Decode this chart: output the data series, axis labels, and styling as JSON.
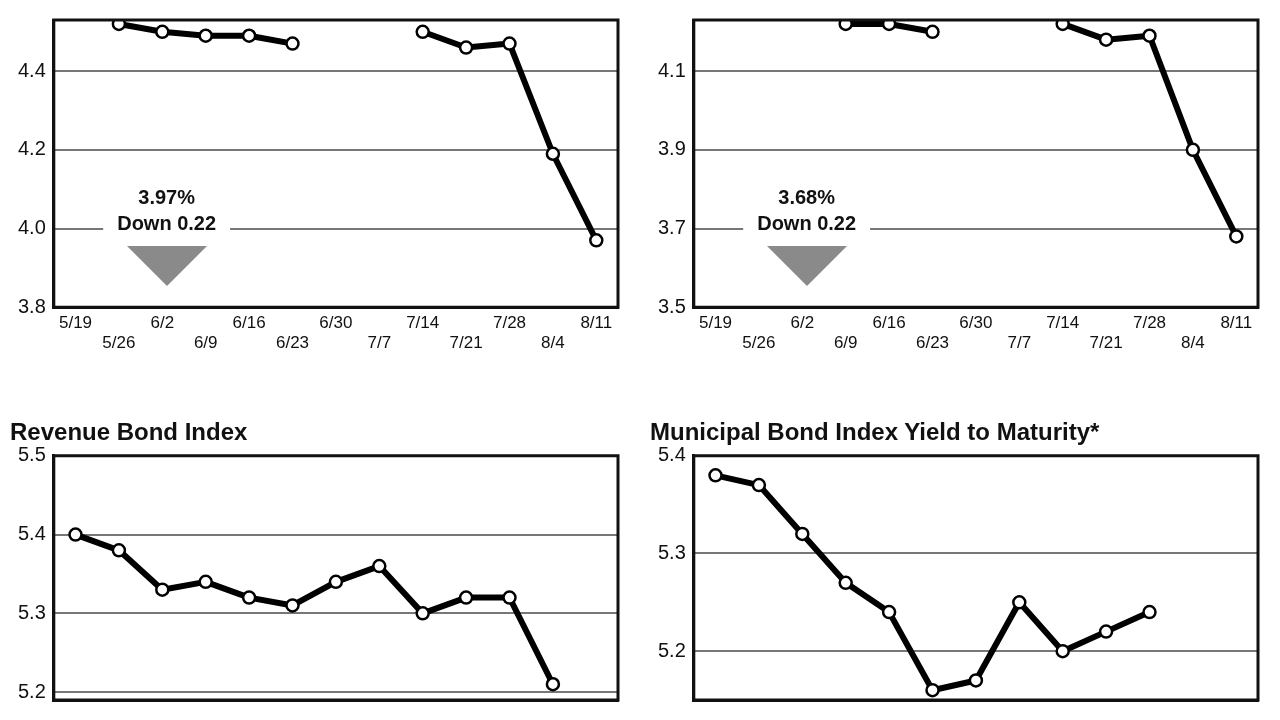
{
  "chart_data": [
    {
      "type": "line",
      "categories": [
        "5/19",
        "5/26",
        "6/2",
        "6/9",
        "6/16",
        "6/23",
        "6/30",
        "7/7",
        "7/14",
        "7/21",
        "7/28",
        "8/4",
        "8/11"
      ],
      "series": [
        {
          "color": "#000000",
          "values": [
            null,
            4.52,
            4.5,
            4.49,
            4.49,
            4.47,
            null,
            null,
            4.5,
            4.46,
            4.47,
            4.19,
            3.97
          ]
        }
      ],
      "ylim": [
        3.8,
        4.53
      ],
      "yticks": [
        3.8,
        {
          "value": 4.0,
          "label": "4.0"
        },
        4.2,
        4.4
      ],
      "grid": "y",
      "marker": "circle",
      "line_style": "solid",
      "legend": false,
      "annotations": [
        "3.97%",
        "Down 0.22"
      ]
    },
    {
      "type": "line",
      "categories": [
        "5/19",
        "5/26",
        "6/2",
        "6/9",
        "6/16",
        "6/23",
        "6/30",
        "7/7",
        "7/14",
        "7/21",
        "7/28",
        "8/4",
        "8/11"
      ],
      "series": [
        {
          "color": "#000000",
          "values": [
            null,
            null,
            null,
            4.22,
            4.22,
            4.2,
            null,
            null,
            4.22,
            4.18,
            4.19,
            3.9,
            3.68
          ]
        }
      ],
      "ylim": [
        3.5,
        4.23
      ],
      "yticks": [
        3.5,
        3.7,
        3.9,
        4.1
      ],
      "grid": "y",
      "marker": "circle",
      "line_style": "solid",
      "legend": false,
      "annotations": [
        "3.68%",
        "Down 0.22"
      ]
    },
    {
      "type": "line",
      "title": "Revenue Bond Index",
      "categories": [
        null,
        null,
        null,
        null,
        null,
        null,
        null,
        null,
        null,
        null,
        null,
        null,
        null
      ],
      "series": [
        {
          "color": "#000000",
          "values": [
            5.4,
            5.38,
            5.33,
            5.34,
            5.32,
            5.31,
            5.34,
            5.36,
            5.3,
            5.32,
            5.32,
            5.21,
            null
          ]
        }
      ],
      "ylim": [
        5.19,
        5.5
      ],
      "yticks": [
        5.2,
        5.3,
        5.4,
        5.5
      ],
      "grid": "y",
      "marker": "circle",
      "line_style": "solid",
      "legend": false,
      "tick_labels": "y"
    },
    {
      "type": "line",
      "title": "Municipal Bond Index Yield to Maturity*",
      "categories": [
        null,
        null,
        null,
        null,
        null,
        null,
        null,
        null,
        null,
        null,
        null,
        null,
        null
      ],
      "series": [
        {
          "color": "#000000",
          "values": [
            5.38,
            5.37,
            5.32,
            5.27,
            5.24,
            5.16,
            5.17,
            5.25,
            5.2,
            5.22,
            5.24,
            null,
            null
          ]
        }
      ],
      "ylim": [
        5.15,
        5.4
      ],
      "yticks": [
        5.2,
        5.3,
        5.4
      ],
      "grid": "y",
      "marker": "circle",
      "line_style": "solid",
      "legend": false,
      "tick_labels": "y"
    }
  ]
}
